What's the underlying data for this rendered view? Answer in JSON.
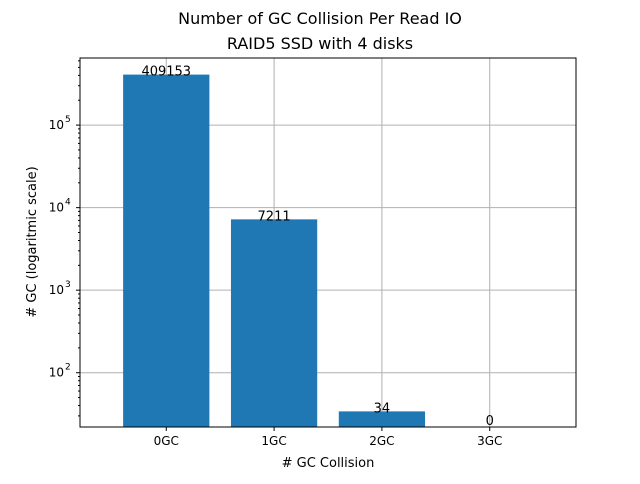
{
  "chart_data": {
    "type": "bar",
    "title": "Number of GC Collision Per Read IO",
    "subtitle": "RAID5 SSD with 4 disks",
    "xlabel": "# GC Collision",
    "ylabel": "# GC (logaritmic scale)",
    "categories": [
      "0GC",
      "1GC",
      "2GC",
      "3GC"
    ],
    "values": [
      409153,
      7211,
      34,
      0
    ],
    "data_labels": [
      "409153",
      "7211",
      "34",
      "0"
    ],
    "y_scale": "log",
    "ylim": [
      22,
      650000
    ],
    "y_ticks": [
      {
        "value": 100,
        "base": "10",
        "exp": "2"
      },
      {
        "value": 1000,
        "base": "10",
        "exp": "3"
      },
      {
        "value": 10000,
        "base": "10",
        "exp": "4"
      },
      {
        "value": 100000,
        "base": "10",
        "exp": "5"
      }
    ],
    "grid": true,
    "legend": "none",
    "bar_color": "#1f77b4"
  }
}
